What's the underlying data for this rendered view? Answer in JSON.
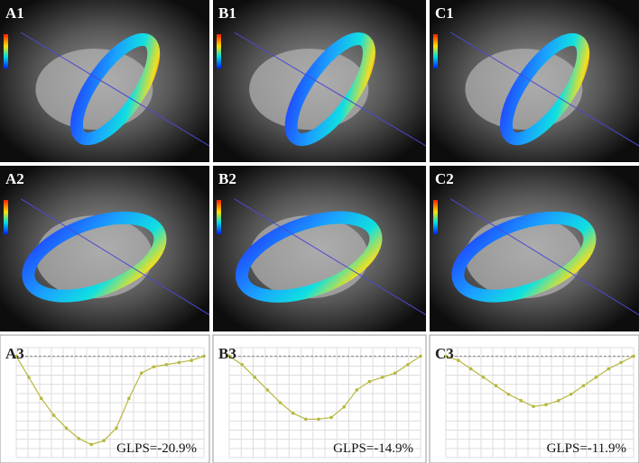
{
  "panels": [
    {
      "label": "A1"
    },
    {
      "label": "B1"
    },
    {
      "label": "C1"
    },
    {
      "label": "A2"
    },
    {
      "label": "B2"
    },
    {
      "label": "C2"
    }
  ],
  "strain_plots": [
    {
      "label": "A3",
      "glps": "GLPS=-20.9%",
      "ylim": [
        -24,
        2
      ],
      "color": "#b8b840",
      "values": [
        0,
        -5,
        -10,
        -14,
        -17,
        -19.5,
        -20.9,
        -20,
        -17,
        -10,
        -4,
        -2.5,
        -2,
        -1.5,
        -1,
        0
      ]
    },
    {
      "label": "B3",
      "glps": "GLPS=-14.9%",
      "ylim": [
        -24,
        2
      ],
      "color": "#b8b840",
      "values": [
        0,
        -2,
        -5,
        -8,
        -11,
        -13.5,
        -14.9,
        -14.9,
        -14.5,
        -12,
        -8,
        -6,
        -5,
        -4,
        -2,
        0
      ]
    },
    {
      "label": "C3",
      "glps": "GLPS=-11.9%",
      "ylim": [
        -24,
        2
      ],
      "color": "#b8b840",
      "values": [
        0,
        -1,
        -3,
        -5,
        -7,
        -9,
        -10.5,
        -11.9,
        -11.5,
        -10.5,
        -9,
        -7,
        -5,
        -3,
        -1.5,
        0
      ]
    }
  ]
}
